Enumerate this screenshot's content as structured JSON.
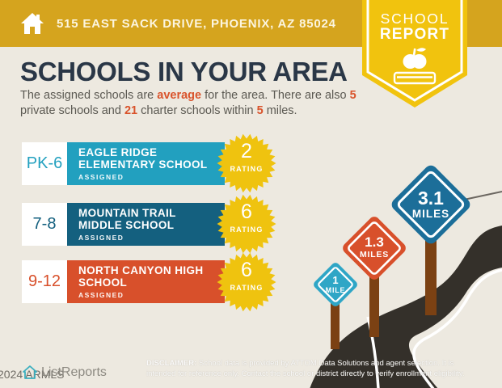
{
  "header": {
    "address": "515 EAST SACK DRIVE, PHOENIX, AZ 85024"
  },
  "badge": {
    "line1": "SCHOOL",
    "line2": "REPORT"
  },
  "title": "SCHOOLS IN YOUR AREA",
  "subtitle": {
    "s1": "The assigned schools are ",
    "s2": "average",
    "s3": " for the area. There are also ",
    "s4": "5",
    "s5": " private schools and ",
    "s6": "21",
    "s7": " charter schools within ",
    "s8": "5",
    "s9": " miles."
  },
  "schools": [
    {
      "grades": "PK-6",
      "name": "EAGLE RIDGE ELEMENTARY SCHOOL",
      "tag": "ASSIGNED",
      "rating": "2",
      "rating_label": "RATING",
      "color": "#22A0BF"
    },
    {
      "grades": "7-8",
      "name": "MOUNTAIN TRAIL MIDDLE SCHOOL",
      "tag": "ASSIGNED",
      "rating": "6",
      "rating_label": "RATING",
      "color": "#14607F"
    },
    {
      "grades": "9-12",
      "name": "NORTH CANYON HIGH SCHOOL",
      "tag": "ASSIGNED",
      "rating": "6",
      "rating_label": "RATING",
      "color": "#D8502B"
    }
  ],
  "signs": [
    {
      "distance": "1",
      "unit": "MILE",
      "color": "#2FA6C6"
    },
    {
      "distance": "1.3",
      "unit": "MILES",
      "color": "#D8502B"
    },
    {
      "distance": "3.1",
      "unit": "MILES",
      "color": "#1C6E99"
    }
  ],
  "disclaimer": {
    "label": "DISCLAIMER:",
    "text": " School data is provided by ATTOM Data Solutions and agent selection. It is intended for reference only. Contact the school or district directly to verify enrollment eligibility."
  },
  "footer": {
    "watermark": "2024 ARMLS",
    "brand": "ListReports"
  },
  "colors": {
    "header_bg": "#D5A41E",
    "badge_yellow": "#F1C30E",
    "background": "#EDE9E0",
    "title_navy": "#2A3747",
    "highlight_orange": "#D9532B",
    "starburst_yellow": "#EFC30F",
    "road": "#34302A",
    "post_brown": "#7B4113",
    "logo_teal": "#3AAFBF"
  }
}
